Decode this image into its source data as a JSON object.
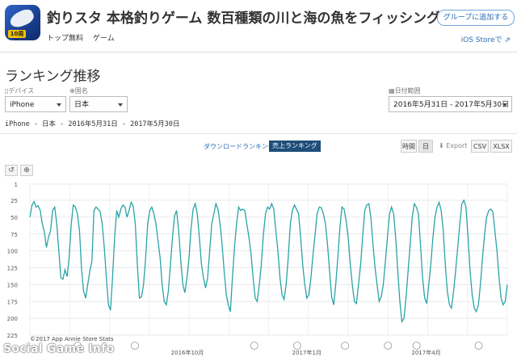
{
  "app": {
    "title": "釣りスタ 本格釣りゲーム 数百種類の川と海の魚をフィッシング",
    "price": "トップ無料",
    "category": "ゲーム",
    "badge_text": "10周年",
    "icon": "app-icon-fish"
  },
  "header": {
    "group_button": "グループに追加する",
    "ios_link": "iOS Storeで ⇗"
  },
  "section": {
    "title": "ランキング推移"
  },
  "filters": {
    "device_label": "デバイス",
    "device_value": "iPhone",
    "country_label": "国名",
    "country_value": "日本",
    "date_label": "日付範囲",
    "date_value": "2016年5月31日 - 2017年5月30日"
  },
  "subinfo": "iPhone - 日本 - 2016年5月31日 - 2017年5月30日",
  "toggles": {
    "download": "ダウンロードランキング",
    "revenue": "売上ランキング"
  },
  "toolbar": {
    "hourly": "時間",
    "daily": "日",
    "export": "Export",
    "csv": "CSV",
    "xlsx": "XLSX"
  },
  "zoom": {
    "reset_icon": "undo-icon",
    "zoom_icon": "zoom-in-icon"
  },
  "colors": {
    "line": "#2aa3a6",
    "accent": "#1f4e79",
    "link": "#2a6db5"
  },
  "chart_data": {
    "type": "line",
    "title": "",
    "y_axis": {
      "reversed": true,
      "ylim": [
        1,
        225
      ],
      "ticks": [
        "1",
        "25",
        "50",
        "75",
        "100",
        "125",
        "150",
        "175",
        "200",
        "225"
      ]
    },
    "x_axis": {
      "ticks": [
        "2016年10月",
        "2017年1月",
        "2017年4月"
      ]
    },
    "grid": true,
    "credit": "©2017 App Annie Store Stats",
    "series": [
      {
        "values": [
          50,
          32,
          27,
          35,
          33,
          40,
          60,
          72,
          95,
          80,
          70,
          40,
          35,
          60,
          100,
          140,
          142,
          128,
          138,
          110,
          60,
          32,
          35,
          45,
          70,
          128,
          160,
          170,
          150,
          130,
          115,
          40,
          35,
          38,
          42,
          60,
          95,
          140,
          180,
          188,
          140,
          80,
          40,
          50,
          38,
          32,
          35,
          50,
          40,
          28,
          34,
          60,
          120,
          170,
          168,
          150,
          110,
          60,
          40,
          35,
          45,
          60,
          85,
          110,
          150,
          175,
          180,
          160,
          120,
          80,
          48,
          40,
          70,
          115,
          150,
          162,
          140,
          110,
          65,
          38,
          30,
          45,
          80,
          120,
          140,
          155,
          140,
          100,
          60,
          45,
          30,
          38,
          60,
          90,
          130,
          165,
          180,
          190,
          140,
          95,
          60,
          35,
          40,
          38,
          40,
          60,
          80,
          105,
          140,
          170,
          175,
          150,
          120,
          75,
          45,
          35,
          38,
          30,
          38,
          70,
          100,
          140,
          165,
          172,
          150,
          110,
          60,
          40,
          32,
          38,
          45,
          80,
          120,
          150,
          170,
          165,
          140,
          105,
          75,
          45,
          35,
          36,
          45,
          60,
          90,
          130,
          168,
          180,
          150,
          110,
          65,
          35,
          38,
          55,
          80,
          120,
          150,
          175,
          178,
          150,
          120,
          80,
          40,
          32,
          30,
          50,
          90,
          125,
          150,
          175,
          168,
          150,
          115,
          80,
          45,
          35,
          45,
          80,
          130,
          175,
          205,
          200,
          170,
          130,
          90,
          50,
          30,
          35,
          45,
          90,
          140,
          170,
          178,
          150,
          120,
          80,
          50,
          35,
          28,
          40,
          70,
          120,
          160,
          180,
          185,
          160,
          130,
          95,
          60,
          30,
          25,
          35,
          80,
          130,
          165,
          185,
          190,
          180,
          150,
          110,
          75,
          50,
          40,
          38,
          42,
          70,
          100,
          140,
          170,
          180,
          175,
          150
        ]
      }
    ]
  },
  "watermark": "Social Game Info"
}
